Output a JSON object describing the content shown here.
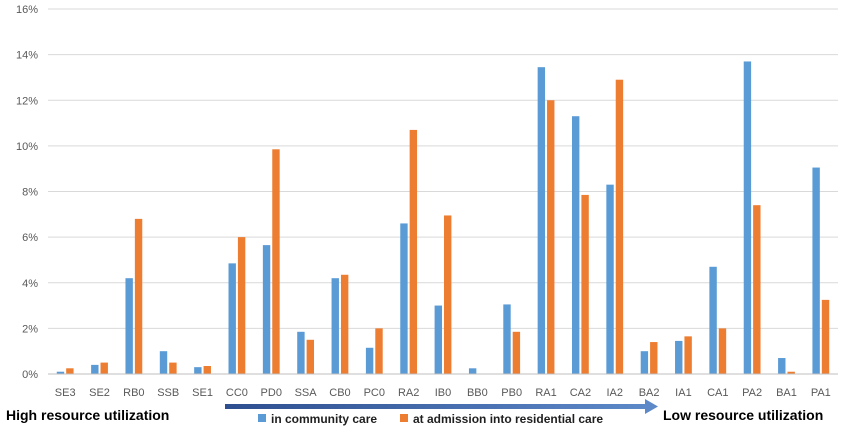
{
  "chart_data": {
    "type": "bar",
    "title": "",
    "xlabel": "",
    "ylabel": "",
    "ylim": [
      0,
      16
    ],
    "y_tick_step": 2,
    "y_tick_suffix": "%",
    "grid": true,
    "legend_position": "bottom",
    "categories": [
      "SE3",
      "SE2",
      "RB0",
      "SSB",
      "SE1",
      "CC0",
      "PD0",
      "SSA",
      "CB0",
      "PC0",
      "RA2",
      "IB0",
      "BB0",
      "PB0",
      "RA1",
      "CA2",
      "IA2",
      "BA2",
      "IA1",
      "CA1",
      "PA2",
      "BA1",
      "PA1"
    ],
    "series": [
      {
        "name": "in community care",
        "color": "#5b9bd5",
        "values": [
          0.1,
          0.4,
          4.2,
          1.0,
          0.3,
          4.85,
          5.65,
          1.85,
          4.2,
          1.15,
          6.6,
          3.0,
          0.25,
          3.05,
          13.45,
          11.3,
          8.3,
          1.0,
          1.45,
          4.7,
          13.7,
          0.7,
          9.05
        ]
      },
      {
        "name": "at admission into residential care",
        "color": "#ed7d31",
        "values": [
          0.25,
          0.5,
          6.8,
          0.5,
          0.35,
          6.0,
          9.85,
          1.5,
          4.35,
          2.0,
          10.7,
          6.95,
          0.0,
          1.85,
          12.0,
          7.85,
          12.9,
          1.4,
          1.65,
          2.0,
          7.4,
          0.1,
          3.25
        ]
      }
    ],
    "annotations": {
      "left": "High resource utilization",
      "right": "Low resource utilization"
    }
  }
}
